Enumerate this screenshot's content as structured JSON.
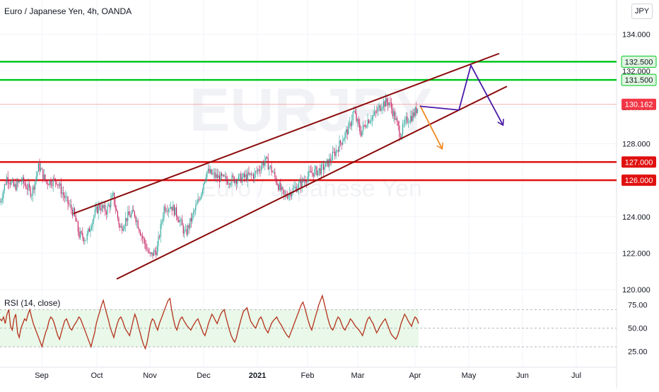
{
  "header": {
    "title": "Euro / Japanese Yen, 4h, OANDA",
    "currency_button": "JPY",
    "watermark_symbol": "EURJPY",
    "watermark_name": "Euro / Japanese Yen"
  },
  "rsi_panel": {
    "title": "RSI (14, close)"
  },
  "colors": {
    "green_level": "#00c81e",
    "red_level": "#e01010",
    "channel": "#8b0a0a",
    "arrow_orange": "#f08a24",
    "arrow_purple": "#4a1aa8",
    "rsi_line": "#b5311c",
    "rsi_band": "#e9f8e8",
    "candle_up": "#26a69a",
    "candle_down": "#c2185b"
  },
  "chart_data": [
    {
      "type": "candlestick",
      "title": "Euro / Japanese Yen, 4h, OANDA",
      "ylim": [
        120,
        134.8
      ],
      "y_ticks": [
        "120.000",
        "122.000",
        "124.000",
        "126.000",
        "128.000",
        "130.000",
        "132.000",
        "134.000"
      ],
      "x_ticks": [
        "Sep",
        "Oct",
        "Nov",
        "Dec",
        "2021",
        "Feb",
        "Mar",
        "Apr",
        "May",
        "Jun",
        "Jul"
      ],
      "current_price": "130.162",
      "price_path": [
        [
          0,
          124.8
        ],
        [
          10,
          126.2
        ],
        [
          20,
          125.6
        ],
        [
          30,
          126.0
        ],
        [
          45,
          125.3
        ],
        [
          55,
          126.8
        ],
        [
          65,
          125.9
        ],
        [
          80,
          126.0
        ],
        [
          92,
          125.0
        ],
        [
          104,
          124.2
        ],
        [
          112,
          123.0
        ],
        [
          122,
          122.8
        ],
        [
          132,
          124.0
        ],
        [
          140,
          124.6
        ],
        [
          150,
          124.3
        ],
        [
          160,
          125.1
        ],
        [
          170,
          123.3
        ],
        [
          180,
          124.0
        ],
        [
          190,
          124.2
        ],
        [
          200,
          123.0
        ],
        [
          212,
          121.8
        ],
        [
          222,
          122.2
        ],
        [
          232,
          124.5
        ],
        [
          242,
          124.6
        ],
        [
          252,
          124.0
        ],
        [
          262,
          123.0
        ],
        [
          272,
          124.0
        ],
        [
          282,
          125.0
        ],
        [
          292,
          126.5
        ],
        [
          305,
          126.2
        ],
        [
          320,
          126.0
        ],
        [
          340,
          126.1
        ],
        [
          360,
          126.3
        ],
        [
          375,
          127.1
        ],
        [
          385,
          126.5
        ],
        [
          395,
          125.6
        ],
        [
          402,
          125.1
        ],
        [
          412,
          125.4
        ],
        [
          425,
          125.8
        ],
        [
          440,
          126.4
        ],
        [
          455,
          126.6
        ],
        [
          465,
          127.0
        ],
        [
          475,
          127.6
        ],
        [
          485,
          128.3
        ],
        [
          495,
          129.0
        ],
        [
          500,
          129.8
        ],
        [
          510,
          128.6
        ],
        [
          520,
          129.3
        ],
        [
          530,
          129.6
        ],
        [
          540,
          130.2
        ],
        [
          550,
          130.3
        ],
        [
          558,
          129.5
        ],
        [
          566,
          128.5
        ],
        [
          575,
          129.3
        ],
        [
          585,
          129.6
        ],
        [
          592,
          130.1
        ]
      ],
      "levels": [
        {
          "label": "132.500",
          "value": 132.5,
          "color": "green"
        },
        {
          "label": "131.500",
          "value": 131.5,
          "color": "green"
        },
        {
          "label": "127.000",
          "value": 127.0,
          "color": "red"
        },
        {
          "label": "126.000",
          "value": 126.0,
          "color": "red"
        }
      ],
      "channel_lines": [
        {
          "from": [
            104,
            124.17
          ],
          "to": [
            706,
            132.95
          ]
        },
        {
          "from": [
            165,
            120.58
          ],
          "to": [
            717,
            131.15
          ]
        }
      ],
      "projections": [
        {
          "color": "orange",
          "points": [
            [
              594,
              130.1
            ],
            [
              625,
              127.75
            ]
          ]
        },
        {
          "color": "purple",
          "points": [
            [
              594,
              130.06
            ],
            [
              649,
              129.85
            ],
            [
              666,
              132.3
            ],
            [
              711,
              129.05
            ]
          ]
        }
      ]
    },
    {
      "type": "line",
      "title": "RSI (14, close)",
      "ylim": [
        14,
        90
      ],
      "y_ticks": [
        "25.00",
        "50.00",
        "75.00"
      ],
      "band": [
        30,
        70
      ],
      "values": [
        60,
        58,
        62,
        55,
        65,
        70,
        52,
        48,
        60,
        65,
        45,
        40,
        50,
        55,
        60,
        58,
        65,
        70,
        62,
        55,
        50,
        45,
        40,
        35,
        30,
        38,
        45,
        50,
        58,
        62,
        60,
        55,
        48,
        42,
        38,
        45,
        52,
        58,
        60,
        55,
        50,
        48,
        52,
        55,
        58,
        62,
        60,
        55,
        50,
        45,
        40,
        35,
        30,
        38,
        45,
        55,
        62,
        68,
        75,
        80,
        72,
        65,
        58,
        50,
        45,
        40,
        48,
        55,
        60,
        62,
        58,
        52,
        48,
        45,
        42,
        50,
        58,
        65,
        60,
        52,
        45,
        38,
        32,
        28,
        35,
        45,
        55,
        60,
        58,
        52,
        48,
        55,
        60,
        65,
        70,
        75,
        80,
        82,
        70,
        60,
        52,
        48,
        55,
        60,
        62,
        58,
        55,
        52,
        50,
        48,
        52,
        55,
        58,
        60,
        55,
        50,
        45,
        42,
        48,
        55,
        60,
        65,
        62,
        58,
        55,
        60,
        65,
        68,
        70,
        62,
        55,
        48,
        42,
        38,
        35,
        40,
        48,
        55,
        62,
        68,
        70,
        72,
        65,
        58,
        55,
        52,
        50,
        55,
        60,
        62,
        58,
        52,
        48,
        45,
        50,
        55,
        58,
        60,
        62,
        58,
        55,
        52,
        48,
        45,
        42,
        40,
        45,
        50,
        55,
        60,
        65,
        70,
        75,
        78,
        72,
        65,
        58,
        52,
        48,
        55,
        62,
        68,
        75,
        80,
        85,
        78,
        70,
        62,
        55,
        50,
        48,
        52,
        58,
        62,
        60,
        55,
        50,
        48,
        52,
        55,
        60,
        58,
        55,
        52,
        50,
        48,
        45,
        42,
        48,
        55,
        60,
        62,
        58,
        55,
        50,
        45,
        48,
        52,
        55,
        58,
        60,
        55,
        50,
        45,
        42,
        40,
        38,
        42,
        48,
        55,
        60,
        65,
        62,
        58,
        55,
        52,
        58,
        62,
        60,
        55
      ]
    }
  ]
}
